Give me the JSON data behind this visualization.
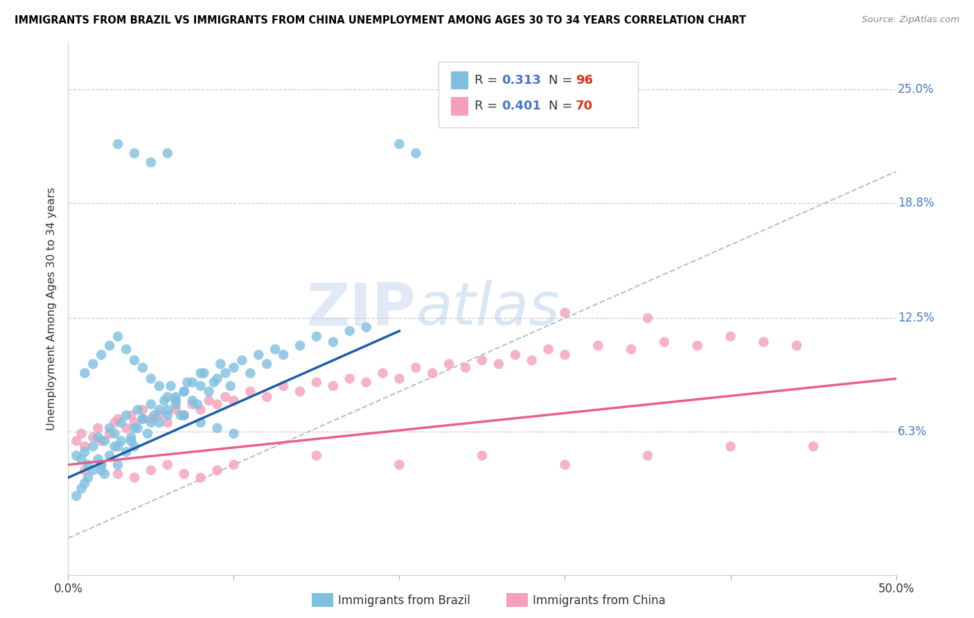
{
  "title": "IMMIGRANTS FROM BRAZIL VS IMMIGRANTS FROM CHINA UNEMPLOYMENT AMONG AGES 30 TO 34 YEARS CORRELATION CHART",
  "source": "Source: ZipAtlas.com",
  "ylabel": "Unemployment Among Ages 30 to 34 years",
  "ytick_labels": [
    "25.0%",
    "18.8%",
    "12.5%",
    "6.3%"
  ],
  "ytick_values": [
    0.25,
    0.188,
    0.125,
    0.063
  ],
  "xlim": [
    0.0,
    0.5
  ],
  "ylim": [
    -0.015,
    0.275
  ],
  "watermark_zip": "ZIP",
  "watermark_atlas": "atlas",
  "legend_brazil_R": "0.313",
  "legend_brazil_N": "96",
  "legend_china_R": "0.401",
  "legend_china_N": "70",
  "brazil_color": "#7fbfdf",
  "china_color": "#f4a0bb",
  "brazil_line_color": "#1a5fa8",
  "china_line_color": "#e8608a",
  "dashed_line_color": "#b0b8c8",
  "right_label_color": "#4477cc",
  "N_label_color": "#dd3311",
  "brazil_scatter_x": [
    0.005,
    0.008,
    0.01,
    0.012,
    0.015,
    0.018,
    0.02,
    0.022,
    0.025,
    0.028,
    0.03,
    0.032,
    0.035,
    0.038,
    0.04,
    0.042,
    0.045,
    0.048,
    0.05,
    0.052,
    0.055,
    0.058,
    0.06,
    0.062,
    0.065,
    0.068,
    0.07,
    0.072,
    0.075,
    0.078,
    0.08,
    0.082,
    0.085,
    0.088,
    0.09,
    0.092,
    0.095,
    0.098,
    0.1,
    0.105,
    0.11,
    0.115,
    0.12,
    0.125,
    0.13,
    0.14,
    0.15,
    0.16,
    0.17,
    0.18,
    0.005,
    0.008,
    0.01,
    0.012,
    0.015,
    0.018,
    0.02,
    0.022,
    0.025,
    0.028,
    0.03,
    0.032,
    0.035,
    0.038,
    0.04,
    0.042,
    0.045,
    0.05,
    0.055,
    0.06,
    0.065,
    0.07,
    0.075,
    0.08,
    0.01,
    0.015,
    0.02,
    0.025,
    0.03,
    0.035,
    0.04,
    0.045,
    0.05,
    0.055,
    0.06,
    0.065,
    0.07,
    0.08,
    0.09,
    0.1,
    0.03,
    0.04,
    0.05,
    0.06,
    0.2,
    0.21
  ],
  "brazil_scatter_y": [
    0.05,
    0.048,
    0.052,
    0.045,
    0.055,
    0.06,
    0.042,
    0.058,
    0.065,
    0.062,
    0.055,
    0.068,
    0.072,
    0.058,
    0.065,
    0.075,
    0.07,
    0.062,
    0.078,
    0.072,
    0.068,
    0.08,
    0.075,
    0.088,
    0.082,
    0.072,
    0.085,
    0.09,
    0.08,
    0.078,
    0.088,
    0.095,
    0.085,
    0.09,
    0.092,
    0.1,
    0.095,
    0.088,
    0.098,
    0.102,
    0.095,
    0.105,
    0.1,
    0.108,
    0.105,
    0.11,
    0.115,
    0.112,
    0.118,
    0.12,
    0.028,
    0.032,
    0.035,
    0.038,
    0.042,
    0.048,
    0.045,
    0.04,
    0.05,
    0.055,
    0.045,
    0.058,
    0.052,
    0.06,
    0.055,
    0.065,
    0.07,
    0.068,
    0.075,
    0.072,
    0.08,
    0.085,
    0.09,
    0.095,
    0.095,
    0.1,
    0.105,
    0.11,
    0.115,
    0.108,
    0.102,
    0.098,
    0.092,
    0.088,
    0.082,
    0.078,
    0.072,
    0.068,
    0.065,
    0.062,
    0.22,
    0.215,
    0.21,
    0.215,
    0.22,
    0.215
  ],
  "china_scatter_x": [
    0.005,
    0.008,
    0.01,
    0.015,
    0.018,
    0.02,
    0.025,
    0.028,
    0.03,
    0.035,
    0.038,
    0.04,
    0.045,
    0.05,
    0.055,
    0.06,
    0.065,
    0.07,
    0.075,
    0.08,
    0.085,
    0.09,
    0.095,
    0.1,
    0.11,
    0.12,
    0.13,
    0.14,
    0.15,
    0.16,
    0.17,
    0.18,
    0.19,
    0.2,
    0.21,
    0.22,
    0.23,
    0.24,
    0.25,
    0.26,
    0.27,
    0.28,
    0.29,
    0.3,
    0.32,
    0.34,
    0.36,
    0.38,
    0.4,
    0.42,
    0.01,
    0.02,
    0.03,
    0.04,
    0.05,
    0.06,
    0.07,
    0.08,
    0.09,
    0.1,
    0.15,
    0.2,
    0.25,
    0.3,
    0.35,
    0.4,
    0.45,
    0.3,
    0.35,
    0.44
  ],
  "china_scatter_y": [
    0.058,
    0.062,
    0.055,
    0.06,
    0.065,
    0.058,
    0.062,
    0.068,
    0.07,
    0.065,
    0.072,
    0.068,
    0.075,
    0.07,
    0.072,
    0.068,
    0.075,
    0.072,
    0.078,
    0.075,
    0.08,
    0.078,
    0.082,
    0.08,
    0.085,
    0.082,
    0.088,
    0.085,
    0.09,
    0.088,
    0.092,
    0.09,
    0.095,
    0.092,
    0.098,
    0.095,
    0.1,
    0.098,
    0.102,
    0.1,
    0.105,
    0.102,
    0.108,
    0.105,
    0.11,
    0.108,
    0.112,
    0.11,
    0.115,
    0.112,
    0.042,
    0.045,
    0.04,
    0.038,
    0.042,
    0.045,
    0.04,
    0.038,
    0.042,
    0.045,
    0.05,
    0.045,
    0.05,
    0.045,
    0.05,
    0.055,
    0.055,
    0.128,
    0.125,
    0.11
  ],
  "brazil_trend_x0": 0.0,
  "brazil_trend_y0": 0.038,
  "brazil_trend_x1": 0.2,
  "brazil_trend_y1": 0.118,
  "china_trend_x0": 0.0,
  "china_trend_y0": 0.045,
  "china_trend_x1": 0.5,
  "china_trend_y1": 0.092,
  "dashed_trend_x0": 0.0,
  "dashed_trend_y0": 0.005,
  "dashed_trend_x1": 0.5,
  "dashed_trend_y1": 0.205
}
